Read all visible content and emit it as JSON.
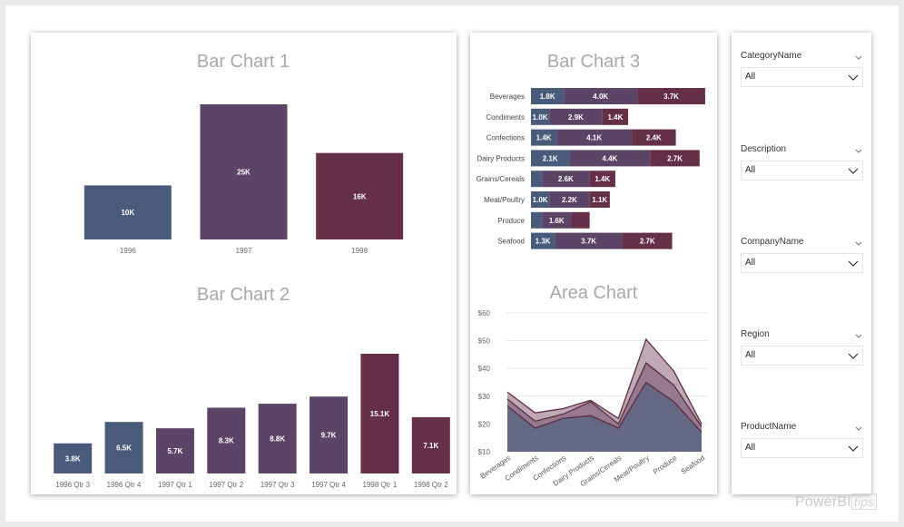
{
  "colors": {
    "blue": "#4a5a7b",
    "purple": "#5b4465",
    "wine": "#652f47",
    "area1": "#b49aa8",
    "area2": "#8d7185",
    "area3": "#5d6583",
    "grid": "#e6e6e6",
    "title": "#a8a8a8",
    "axis": "#666666"
  },
  "watermark": {
    "brand": "PowerBI",
    "suffix": "tips"
  },
  "slicers": [
    {
      "label": "CategoryName",
      "value": "All"
    },
    {
      "label": "Description",
      "value": "All"
    },
    {
      "label": "CompanyName",
      "value": "All"
    },
    {
      "label": "Region",
      "value": "All"
    },
    {
      "label": "ProductName",
      "value": "All"
    }
  ],
  "chart_data": [
    {
      "id": "bar1",
      "type": "bar",
      "title": "Bar Chart 1",
      "categories": [
        "1996",
        "1997",
        "1998"
      ],
      "values": [
        10,
        25,
        16
      ],
      "labels": [
        "10K",
        "25K",
        "16K"
      ],
      "colors": [
        "blue",
        "purple",
        "wine"
      ],
      "ylim": [
        0,
        25
      ]
    },
    {
      "id": "bar2",
      "type": "bar",
      "title": "Bar Chart 2",
      "categories": [
        "1996 Qtr 3",
        "1996 Qtr 4",
        "1997 Qtr 1",
        "1997 Qtr 2",
        "1997 Qtr 3",
        "1997 Qtr 4",
        "1998 Qtr 1",
        "1998 Qtr 2"
      ],
      "values": [
        3.8,
        6.5,
        5.7,
        8.3,
        8.8,
        9.7,
        15.1,
        7.1
      ],
      "labels": [
        "3.8K",
        "6.5K",
        "5.7K",
        "8.3K",
        "8.8K",
        "9.7K",
        "15.1K",
        "7.1K"
      ],
      "colors": [
        "blue",
        "blue",
        "purple",
        "purple",
        "purple",
        "purple",
        "wine",
        "wine"
      ],
      "ylim": [
        0,
        15.1
      ]
    },
    {
      "id": "bar3",
      "type": "bar",
      "stacked": true,
      "orientation": "horizontal",
      "title": "Bar Chart 3",
      "categories": [
        "Beverages",
        "Condiments",
        "Confections",
        "Dairy Products",
        "Grains/Cereals",
        "Meat/Poultry",
        "Produce",
        "Seafood"
      ],
      "series": [
        {
          "color": "blue",
          "values": [
            1.8,
            1.0,
            1.4,
            2.1,
            0.6,
            1.0,
            0.6,
            1.3
          ],
          "labels": [
            "1.8K",
            "1.0K",
            "1.4K",
            "2.1K",
            "",
            "1.0K",
            "",
            "1.3K"
          ]
        },
        {
          "color": "purple",
          "values": [
            4.0,
            2.9,
            4.1,
            4.4,
            2.6,
            2.2,
            1.6,
            3.7
          ],
          "labels": [
            "4.0K",
            "2.9K",
            "4.1K",
            "4.4K",
            "2.6K",
            "2.2K",
            "1.6K",
            "3.7K"
          ]
        },
        {
          "color": "wine",
          "values": [
            3.7,
            1.4,
            2.4,
            2.7,
            1.4,
            1.1,
            1.0,
            2.7
          ],
          "labels": [
            "3.7K",
            "1.4K",
            "2.4K",
            "2.7K",
            "1.4K",
            "1.1K",
            "",
            "2.7K"
          ]
        }
      ]
    },
    {
      "id": "area",
      "type": "area",
      "title": "Area Chart",
      "categories": [
        "Beverages",
        "Condiments",
        "Confections",
        "Dairy Products",
        "Grains/Cereals",
        "Meat/Poultry",
        "Produce",
        "Seafood"
      ],
      "yticks": [
        "$10",
        "$20",
        "$30",
        "$40",
        "$50",
        "$60"
      ],
      "ylim": [
        10,
        60
      ],
      "series": [
        {
          "color": "area1",
          "values": [
            31.5,
            24,
            25.5,
            28.5,
            22,
            50.5,
            39,
            20
          ]
        },
        {
          "color": "area2",
          "values": [
            29,
            21,
            23.5,
            28,
            20,
            42,
            34,
            19
          ]
        },
        {
          "color": "area3",
          "values": [
            26.5,
            18.5,
            22,
            23,
            18.5,
            35,
            28,
            17
          ]
        }
      ]
    }
  ]
}
